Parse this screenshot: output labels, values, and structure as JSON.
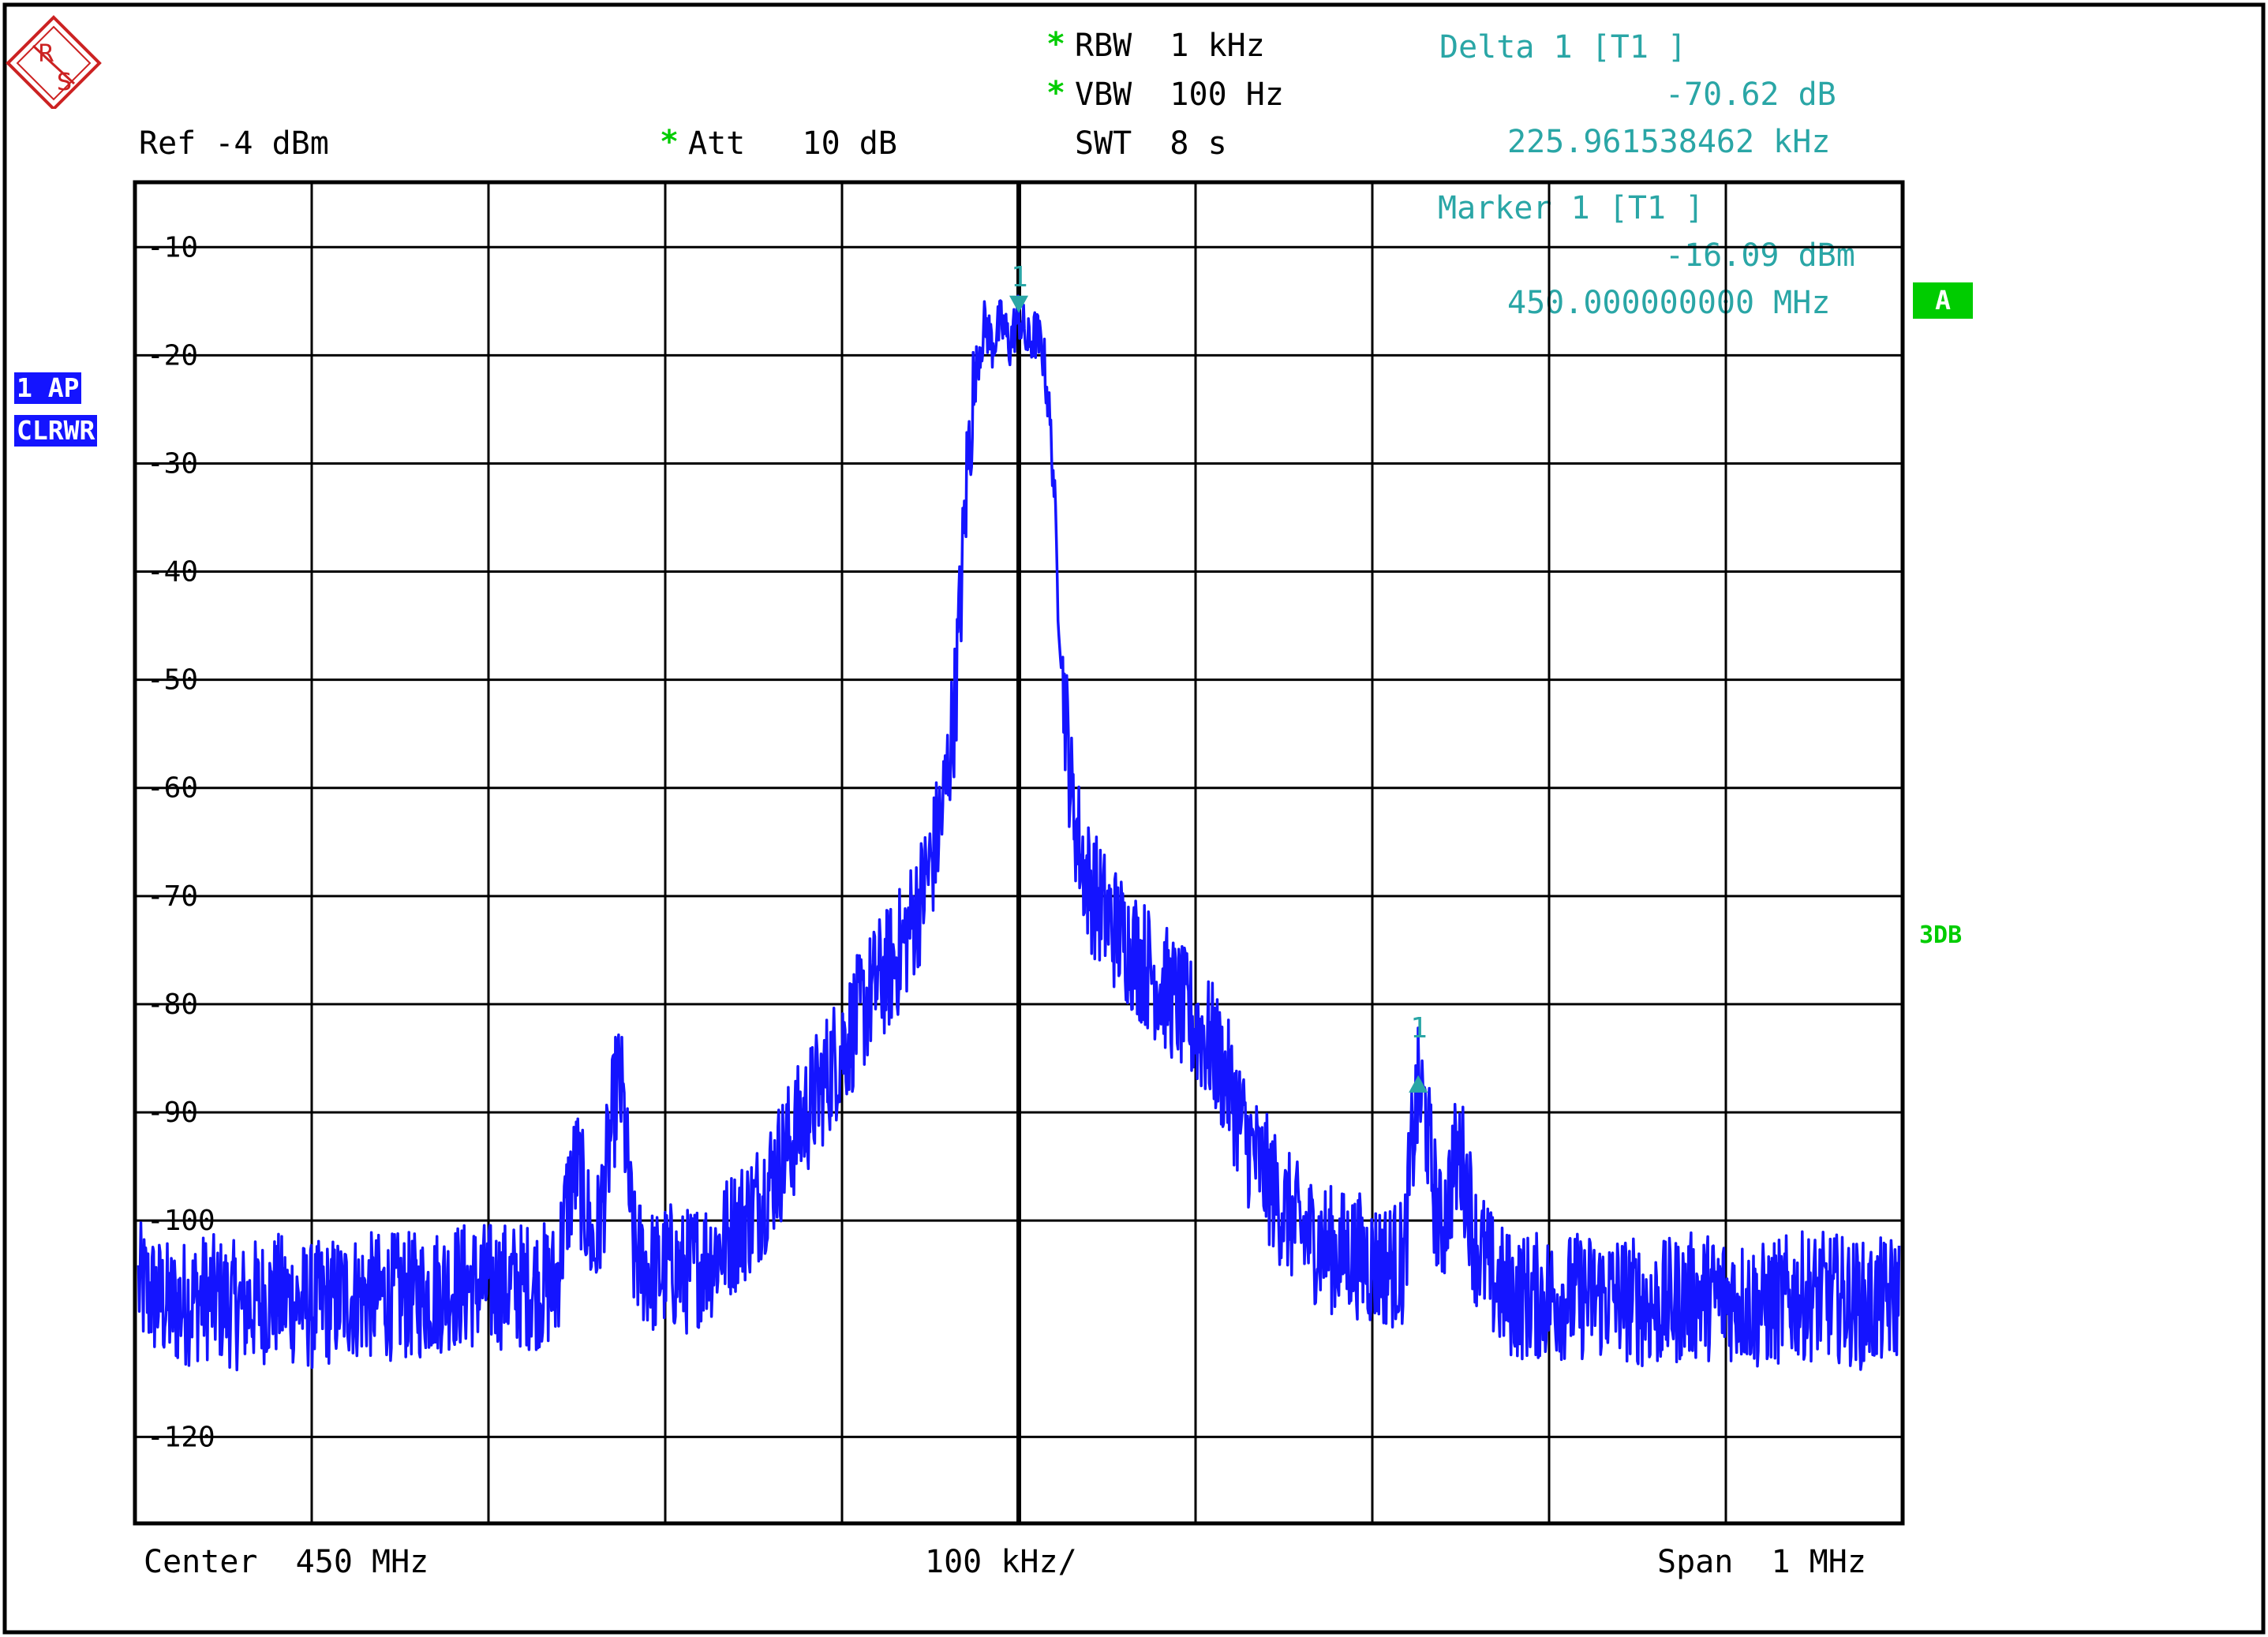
{
  "header": {
    "ref": "Ref -4 dBm",
    "att_star": "*",
    "att": "Att   10 dB",
    "rbw_star": "*",
    "rbw": "RBW  1 kHz",
    "vbw_star": "*",
    "vbw": "VBW  100 Hz",
    "swt": "SWT  8 s",
    "delta_label": "Delta 1 [T1 ]",
    "delta_value": "-70.62 dB",
    "delta_freq": "225.961538462 kHz",
    "marker_label": "Marker 1 [T1 ]",
    "marker_value": "-16.09 dBm",
    "marker_freq": "450.000000000 MHz"
  },
  "side": {
    "trace_mode": "1 AP",
    "trace_type": "CLRWR",
    "indicator": "A",
    "label_3db": "3DB"
  },
  "footer": {
    "center": "Center  450 MHz",
    "div": "100 kHz/",
    "span": "Span  1 MHz"
  },
  "colors": {
    "trace": "#1414ff",
    "grid": "#000000",
    "marker": "#2aa6a6",
    "status_green": "#00cc00"
  },
  "chart_data": {
    "type": "line",
    "title": "",
    "xlabel": "",
    "ylabel": "",
    "x_unit": "kHz offset from center",
    "xlim": [
      -500,
      500
    ],
    "ylim": [
      -128,
      -4
    ],
    "yticks": [
      -10,
      -20,
      -30,
      -40,
      -50,
      -60,
      -70,
      -80,
      -90,
      -100,
      -120
    ],
    "ytick_labels": [
      "-10",
      "-20",
      "-30",
      "-40",
      "-50",
      "-60",
      "-70",
      "-80",
      "-90",
      "-100",
      "-120"
    ],
    "grid": true,
    "series": [
      {
        "points": [
          [
            -498,
            -106
          ],
          [
            -480,
            -108
          ],
          [
            -460,
            -107
          ],
          [
            -440,
            -108
          ],
          [
            -420,
            -107
          ],
          [
            -400,
            -108
          ],
          [
            -380,
            -107
          ],
          [
            -360,
            -107
          ],
          [
            -340,
            -107
          ],
          [
            -320,
            -106
          ],
          [
            -300,
            -106
          ],
          [
            -280,
            -106
          ],
          [
            -262,
            -106
          ],
          [
            -255,
            -98
          ],
          [
            -250,
            -95
          ],
          [
            -245,
            -99
          ],
          [
            -240,
            -103
          ],
          [
            -236,
            -99
          ],
          [
            -233,
            -95
          ],
          [
            -230,
            -91
          ],
          [
            -227,
            -87
          ],
          [
            -224,
            -89
          ],
          [
            -221,
            -96
          ],
          [
            -218,
            -103
          ],
          [
            -212,
            -104
          ],
          [
            -205,
            -105
          ],
          [
            -198,
            -104
          ],
          [
            -190,
            -105
          ],
          [
            -182,
            -104
          ],
          [
            -172,
            -103
          ],
          [
            -162,
            -101
          ],
          [
            -150,
            -99
          ],
          [
            -140,
            -96
          ],
          [
            -130,
            -93
          ],
          [
            -120,
            -90
          ],
          [
            -110,
            -87
          ],
          [
            -100,
            -84
          ],
          [
            -90,
            -81
          ],
          [
            -80,
            -78
          ],
          [
            -70,
            -76
          ],
          [
            -62,
            -73
          ],
          [
            -55,
            -70
          ],
          [
            -48,
            -66
          ],
          [
            -42,
            -61
          ],
          [
            -36,
            -52
          ],
          [
            -32,
            -40
          ],
          [
            -29,
            -30
          ],
          [
            -26,
            -24
          ],
          [
            -23,
            -20
          ],
          [
            -19,
            -17
          ],
          [
            -15,
            -19
          ],
          [
            -10,
            -17
          ],
          [
            -5,
            -19
          ],
          [
            0,
            -16.09
          ],
          [
            5,
            -19
          ],
          [
            10,
            -18
          ],
          [
            14,
            -20
          ],
          [
            17,
            -25
          ],
          [
            20,
            -32
          ],
          [
            22,
            -42
          ],
          [
            26,
            -52
          ],
          [
            30,
            -61
          ],
          [
            35,
            -66
          ],
          [
            40,
            -69
          ],
          [
            50,
            -72
          ],
          [
            60,
            -74
          ],
          [
            70,
            -76
          ],
          [
            80,
            -78
          ],
          [
            90,
            -80
          ],
          [
            100,
            -82
          ],
          [
            110,
            -84
          ],
          [
            120,
            -88
          ],
          [
            130,
            -93
          ],
          [
            140,
            -96
          ],
          [
            150,
            -99
          ],
          [
            160,
            -101
          ],
          [
            170,
            -102
          ],
          [
            180,
            -103
          ],
          [
            190,
            -103
          ],
          [
            200,
            -104
          ],
          [
            210,
            -104
          ],
          [
            218,
            -104
          ],
          [
            222,
            -94
          ],
          [
            226,
            -88
          ],
          [
            230,
            -90
          ],
          [
            234,
            -96
          ],
          [
            238,
            -101
          ],
          [
            242,
            -99
          ],
          [
            246,
            -95
          ],
          [
            250,
            -94
          ],
          [
            254,
            -97
          ],
          [
            258,
            -102
          ],
          [
            262,
            -103
          ],
          [
            270,
            -106
          ],
          [
            280,
            -107
          ],
          [
            300,
            -107
          ],
          [
            320,
            -107
          ],
          [
            340,
            -107
          ],
          [
            360,
            -108
          ],
          [
            380,
            -107
          ],
          [
            400,
            -107
          ],
          [
            420,
            -108
          ],
          [
            440,
            -107
          ],
          [
            460,
            -107
          ],
          [
            480,
            -108
          ],
          [
            498,
            -107
          ]
        ]
      }
    ],
    "markers": [
      {
        "label": "1",
        "x": 0,
        "y": -16.09
      },
      {
        "label": "1",
        "x": 225.96,
        "y": -86.71
      }
    ]
  }
}
